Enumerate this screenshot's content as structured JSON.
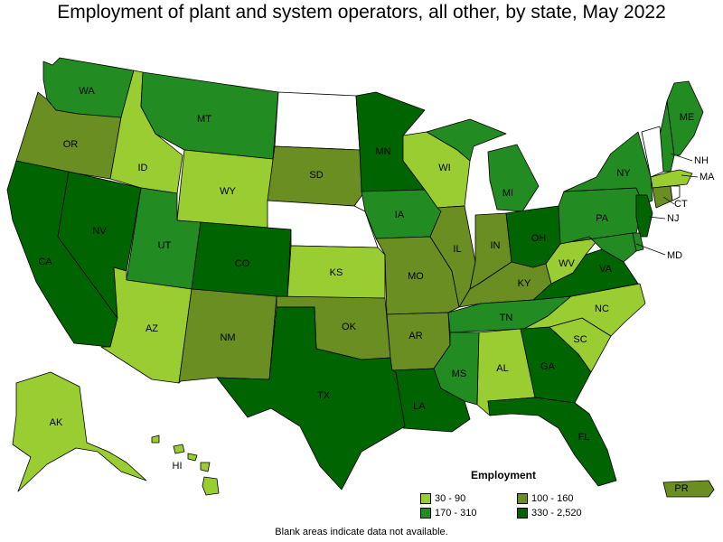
{
  "title": "Employment of plant and system operators, all other, by state, May 2022",
  "footnote": "Blank areas indicate data not available.",
  "legend": {
    "title": "Employment",
    "bins": [
      {
        "label": "30 - 90",
        "color": "#9acd32"
      },
      {
        "label": "100 - 160",
        "color": "#6b8e23"
      },
      {
        "label": "170 - 310",
        "color": "#228b22"
      },
      {
        "label": "330 - 2,520",
        "color": "#006400"
      }
    ]
  },
  "no_data_color": "#ffffff",
  "states": {
    "WA": {
      "bin": 2
    },
    "OR": {
      "bin": 1
    },
    "CA": {
      "bin": 3
    },
    "NV": {
      "bin": 3
    },
    "ID": {
      "bin": 0
    },
    "MT": {
      "bin": 2
    },
    "WY": {
      "bin": 0
    },
    "UT": {
      "bin": 2
    },
    "AZ": {
      "bin": 0
    },
    "CO": {
      "bin": 3
    },
    "NM": {
      "bin": 1
    },
    "ND": {
      "bin": null
    },
    "SD": {
      "bin": 1
    },
    "NE": {
      "bin": null
    },
    "KS": {
      "bin": 0
    },
    "OK": {
      "bin": 1
    },
    "TX": {
      "bin": 3
    },
    "MN": {
      "bin": 3
    },
    "IA": {
      "bin": 2
    },
    "MO": {
      "bin": 1
    },
    "AR": {
      "bin": 1
    },
    "LA": {
      "bin": 3
    },
    "WI": {
      "bin": 0
    },
    "IL": {
      "bin": 1
    },
    "MI": {
      "bin": 2
    },
    "IN": {
      "bin": 1
    },
    "OH": {
      "bin": 3
    },
    "KY": {
      "bin": 1
    },
    "TN": {
      "bin": 2
    },
    "MS": {
      "bin": 2
    },
    "AL": {
      "bin": 0
    },
    "GA": {
      "bin": 3
    },
    "FL": {
      "bin": 3
    },
    "SC": {
      "bin": 0
    },
    "NC": {
      "bin": 0
    },
    "VA": {
      "bin": 3
    },
    "WV": {
      "bin": 0
    },
    "PA": {
      "bin": 2
    },
    "NY": {
      "bin": 2
    },
    "ME": {
      "bin": 2
    },
    "NH": {
      "bin": 2
    },
    "VT": {
      "bin": null
    },
    "MA": {
      "bin": 0
    },
    "CT": {
      "bin": 1
    },
    "RI": {
      "bin": null
    },
    "NJ": {
      "bin": 3
    },
    "DE": {
      "bin": 2
    },
    "MD": {
      "bin": 2
    },
    "AK": {
      "bin": 0
    },
    "HI": {
      "bin": 0
    },
    "PR": {
      "bin": 1
    }
  }
}
